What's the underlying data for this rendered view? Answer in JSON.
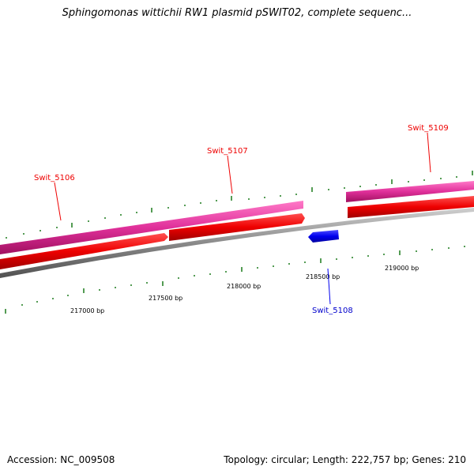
{
  "title": "Sphingomonas wittichii RW1 plasmid pSWIT02, complete sequenc...",
  "footer": {
    "accession": "Accession: NC_009508",
    "stats": "Topology: circular; Length: 222,757 bp; Genes: 210"
  },
  "colors": {
    "forward_gene": "#ee0000",
    "reverse_gene": "#0000ee",
    "forward_label": "#ee0000",
    "reverse_label": "#0000cc",
    "cds_track": "#e0309a",
    "backbone": "#8a8a8a",
    "tick": "#1a7a1a"
  },
  "ticks": [
    {
      "bp": 217000,
      "label": "217000 bp"
    },
    {
      "bp": 217500,
      "label": "217500 bp"
    },
    {
      "bp": 218000,
      "label": "218000 bp"
    },
    {
      "bp": 218500,
      "label": "218500 bp"
    },
    {
      "bp": 219000,
      "label": "219000 bp"
    }
  ],
  "genes": [
    {
      "name": "Swit_5106",
      "strand": "forward"
    },
    {
      "name": "Swit_5107",
      "strand": "forward"
    },
    {
      "name": "Swit_5108",
      "strand": "reverse"
    },
    {
      "name": "Swit_5109",
      "strand": "forward"
    }
  ]
}
